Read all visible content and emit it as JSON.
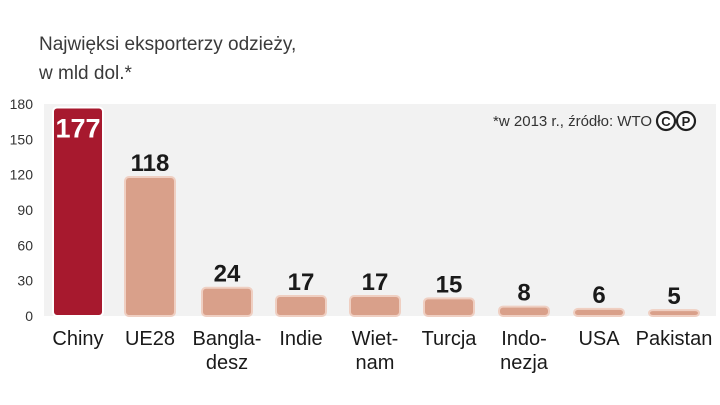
{
  "title": "Najwięksi eksporterzy odzieży,\nw mld dol.*",
  "note": "*w 2013 r., źródło: WTO",
  "logo": {
    "left_glyph": "C",
    "right_glyph": "P"
  },
  "colors": {
    "highlight_fill": "#a7192e",
    "bar_fill": "#d9a08a",
    "bar_stroke": "#efcfc2",
    "plot_bg": "#f2f2f2",
    "text": "#1a1a1a"
  },
  "chart_data": {
    "type": "bar",
    "title": "Najwięksi eksporterzy odzieży, w mld dol.*",
    "xlabel": "",
    "ylabel": "",
    "ylim": [
      0,
      180
    ],
    "yticks": [
      0,
      30,
      60,
      90,
      120,
      150,
      180
    ],
    "grid": false,
    "categories": [
      "Chiny",
      "UE28",
      "Bangla-desz",
      "Indie",
      "Wiet-nam",
      "Turcja",
      "Indo-nezja",
      "USA",
      "Pakistan"
    ],
    "category_lines": [
      [
        "Chiny"
      ],
      [
        "UE28"
      ],
      [
        "Bangla-",
        "desz"
      ],
      [
        "Indie"
      ],
      [
        "Wiet-",
        "nam"
      ],
      [
        "Turcja"
      ],
      [
        "Indo-",
        "nezja"
      ],
      [
        "USA"
      ],
      [
        "Pakistan"
      ]
    ],
    "values": [
      177,
      118,
      24,
      17,
      17,
      15,
      8,
      6,
      5
    ],
    "highlight_index": 0
  }
}
